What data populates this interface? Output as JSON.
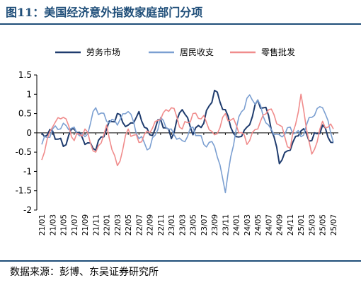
{
  "figure": {
    "title": "图11：美国经济意外指数家庭部门分项",
    "source": "数据来源：彭博、东吴证券研究所"
  },
  "chart_data": {
    "type": "line",
    "title": "",
    "xlabel": "",
    "ylabel": "",
    "ylim": [
      -2,
      1.5
    ],
    "yticks": [
      "1.5",
      "1",
      "0.5",
      "0",
      "-0.5",
      "-1",
      "-1.5",
      "-2"
    ],
    "yticks_values": [
      1.5,
      1,
      0.5,
      0,
      -0.5,
      -1,
      -1.5,
      -2
    ],
    "categories": [
      "21/01",
      "21/03",
      "21/05",
      "21/07",
      "21/09",
      "21/11",
      "22/01",
      "22/03",
      "22/05",
      "22/07",
      "22/09",
      "22/11",
      "23/01",
      "23/03",
      "23/05",
      "23/07",
      "23/09",
      "23/11",
      "24/01",
      "24/03",
      "24/05",
      "24/07",
      "24/09",
      "24/11",
      "25/01",
      "25/03",
      "25/05",
      "25/07"
    ],
    "grid": false,
    "legend_position": "top",
    "series": [
      {
        "name": "劳务市场",
        "color": "#1f3c6e",
        "values": [
          0.0,
          0.05,
          -0.35,
          0.1,
          -0.3,
          -0.45,
          0.1,
          0.5,
          0.2,
          0.55,
          -0.05,
          0.35,
          -0.15,
          0.6,
          -0.05,
          0.25,
          1.1,
          0.6,
          -0.1,
          0.15,
          0.85,
          0.45,
          -0.8,
          -0.45,
          0.05,
          -0.2,
          0.2,
          -0.25
        ]
      },
      {
        "name": "居民收支",
        "color": "#7b9fd1",
        "values": [
          -0.3,
          0.1,
          0.25,
          0.15,
          -0.1,
          0.65,
          0.3,
          0.2,
          0.55,
          -0.15,
          -0.4,
          0.4,
          0.1,
          -0.2,
          0.15,
          -0.3,
          -0.35,
          -1.55,
          0.1,
          0.9,
          0.85,
          0.2,
          -0.05,
          0.15,
          -0.1,
          0.4,
          0.65,
          -0.25
        ]
      },
      {
        "name": "零售批发",
        "color": "#f08c8c",
        "values": [
          -0.7,
          0.15,
          0.4,
          -0.2,
          0.1,
          -0.5,
          0.2,
          -0.85,
          0.1,
          -0.25,
          0.0,
          0.35,
          0.65,
          0.1,
          0.5,
          0.45,
          -0.05,
          0.5,
          0.2,
          -0.3,
          0.1,
          0.6,
          0.2,
          -0.4,
          1.0,
          -0.55,
          0.3,
          0.1
        ]
      }
    ]
  }
}
